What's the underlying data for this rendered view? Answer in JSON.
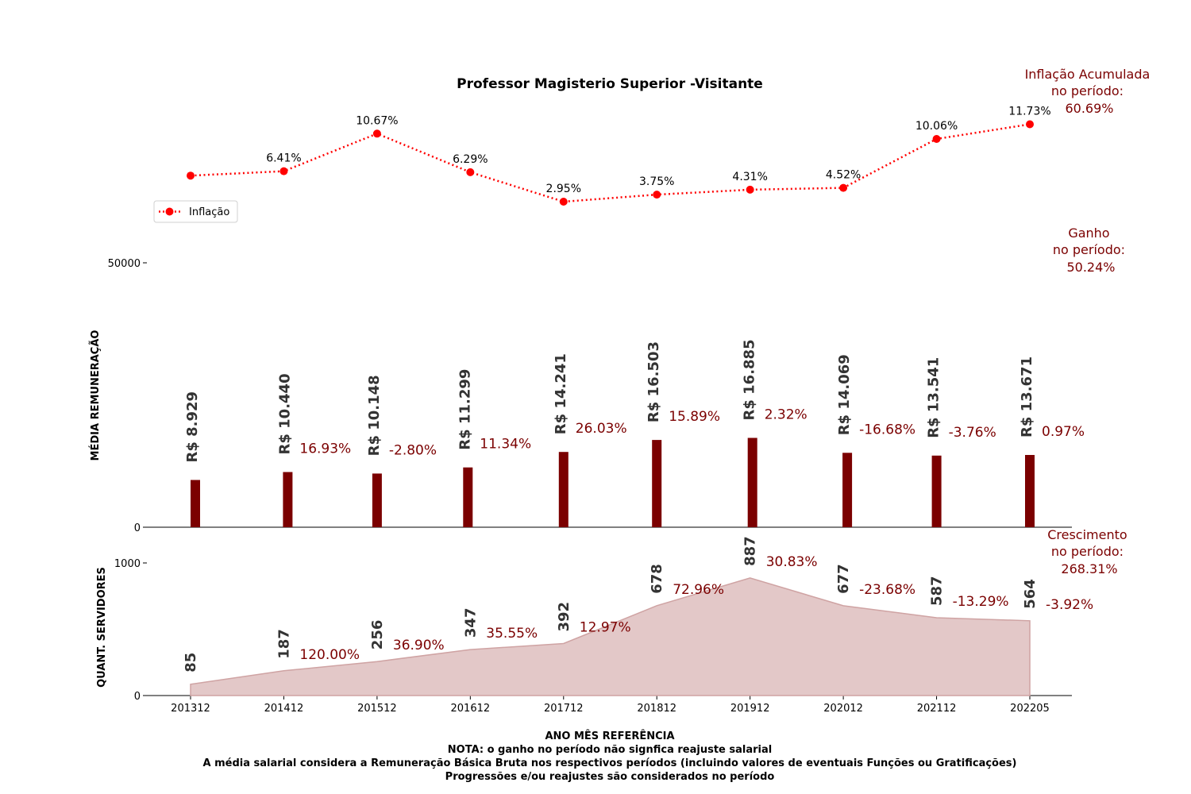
{
  "colors": {
    "inflation_line": "#ff0000",
    "bar": "#7b0000",
    "area_fill": "#e3c8c8",
    "area_edge": "#cfa3a3",
    "annotation": "#7b0000",
    "value_text": "#333333"
  },
  "chart_data": [
    {
      "type": "line",
      "title": "Professor Magisterio Superior -Visitante",
      "series": [
        {
          "name": "Inflação",
          "values": [
            5.9,
            6.41,
            10.67,
            6.29,
            2.95,
            3.75,
            4.31,
            4.52,
            10.06,
            11.73
          ],
          "labels": [
            "",
            "6.41%",
            "10.67%",
            "6.29%",
            "2.95%",
            "3.75%",
            "4.31%",
            "4.52%",
            "10.06%",
            "11.73%"
          ]
        }
      ],
      "categories": [
        "201312",
        "201412",
        "201512",
        "201612",
        "201712",
        "201812",
        "201912",
        "202012",
        "202112",
        "202205"
      ],
      "legend": "Inflação",
      "legend_placement": "left",
      "annotation": [
        "Inflação Acumulada",
        "no período:",
        "60.69%"
      ],
      "line_style": "dotted"
    },
    {
      "type": "bar",
      "ylabel": "MÉDIA REMUNERAÇÃO",
      "ylim": [
        0,
        50000
      ],
      "yticks": [
        "0",
        "50000"
      ],
      "categories": [
        "201312",
        "201412",
        "201512",
        "201612",
        "201712",
        "201812",
        "201912",
        "202012",
        "202112",
        "202205"
      ],
      "values": [
        8929,
        10440,
        10148,
        11299,
        14241,
        16503,
        16885,
        14069,
        13541,
        13671
      ],
      "value_labels": [
        "R$ 8.929",
        "R$ 10.440",
        "R$ 10.148",
        "R$ 11.299",
        "R$ 14.241",
        "R$ 16.503",
        "R$ 16.885",
        "R$ 14.069",
        "R$ 13.541",
        "R$ 13.671"
      ],
      "pct_labels": [
        "",
        "16.93%",
        "-2.80%",
        "11.34%",
        "26.03%",
        "15.89%",
        "2.32%",
        "-16.68%",
        "-3.76%",
        "0.97%"
      ],
      "annotation": [
        "Ganho",
        "no período:",
        "50.24%"
      ]
    },
    {
      "type": "area",
      "ylabel": "QUANT. SERVIDORES",
      "xlabel": "ANO MÊS REFERÊNCIA",
      "ylim": [
        0,
        1000
      ],
      "yticks": [
        "0",
        "1000"
      ],
      "categories": [
        "201312",
        "201412",
        "201512",
        "201612",
        "201712",
        "201812",
        "201912",
        "202012",
        "202112",
        "202205"
      ],
      "values": [
        85,
        187,
        256,
        347,
        392,
        678,
        887,
        677,
        587,
        564
      ],
      "value_labels": [
        "85",
        "187",
        "256",
        "347",
        "392",
        "678",
        "887",
        "677",
        "587",
        "564"
      ],
      "pct_labels": [
        "",
        "120.00%",
        "36.90%",
        "35.55%",
        "12.97%",
        "72.96%",
        "30.83%",
        "-23.68%",
        "-13.29%",
        "-3.92%"
      ],
      "annotation": [
        "Crescimento",
        "no período:",
        "268.31%"
      ]
    }
  ],
  "notes": [
    "NOTA: o ganho no período não signfica reajuste salarial",
    "A média salarial considera a Remuneração Básica Bruta nos respectivos períodos (incluindo valores de eventuais Funções ou Gratificações)",
    "Progressões e/ou reajustes são considerados no período"
  ]
}
